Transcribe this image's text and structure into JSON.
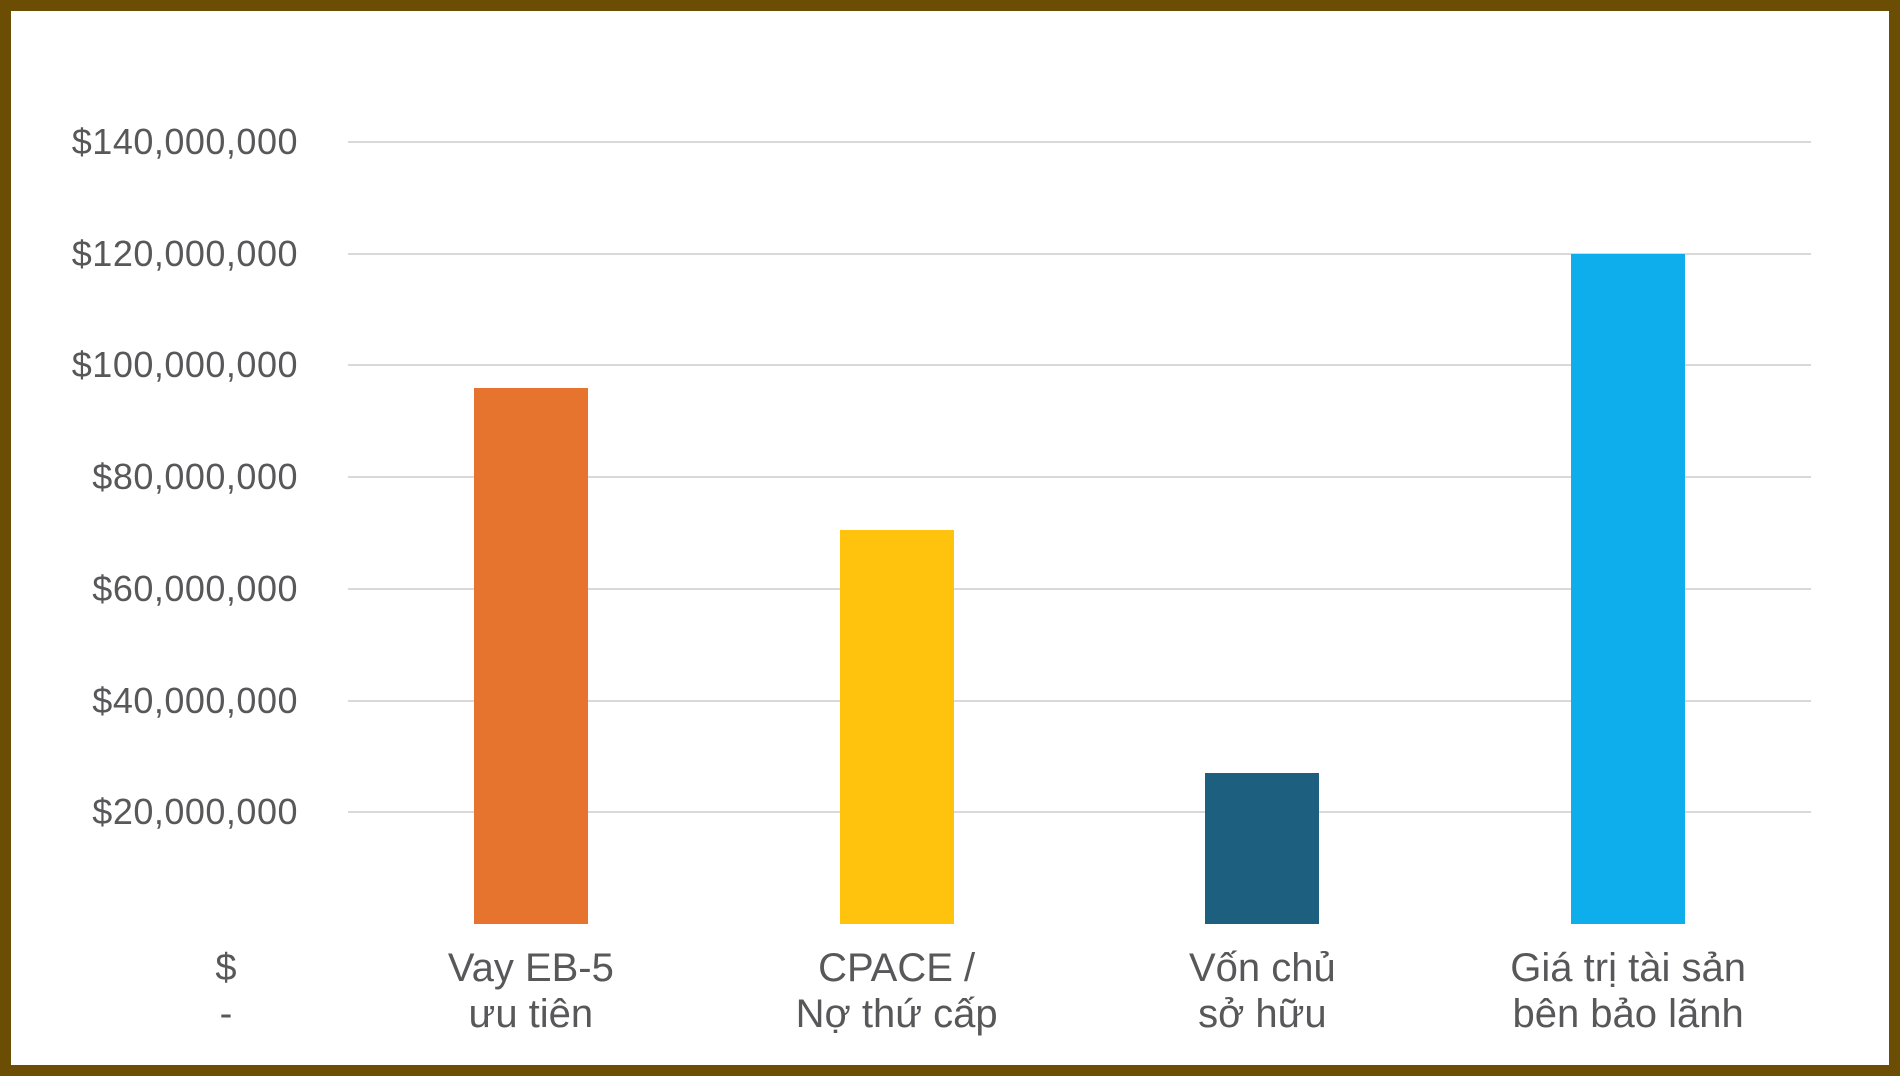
{
  "page": {
    "background_color": "#FFFFFF",
    "frame_border_color": "#6B4E04",
    "text_color": "#58585A",
    "gridline_color": "#D9D9D9"
  },
  "chart_data": {
    "type": "bar",
    "title": "",
    "xlabel": "",
    "ylabel": "",
    "grid": true,
    "legend": false,
    "categories": [
      "Vay EB-5 ưu tiên",
      "CPACE / Nợ thứ cấp",
      "Vốn chủ sở hữu",
      "Giá trị tài sản bên bảo lãnh"
    ],
    "categories_wrapped": [
      [
        "Vay EB-5",
        "ưu tiên"
      ],
      [
        "CPACE /",
        "Nợ thứ cấp"
      ],
      [
        "Vốn chủ",
        "sở hữu"
      ],
      [
        "Giá trị tài sản",
        "bên bảo lãnh"
      ]
    ],
    "values": [
      96000000,
      70500000,
      27000000,
      120000000
    ],
    "bar_colors": [
      "#E6732E",
      "#FFC20D",
      "#1D5F7E",
      "#0DAEEB"
    ],
    "ylim": [
      0,
      140000000
    ],
    "y_tick_step": 20000000,
    "y_ticks": [
      {
        "label": "$140,000,000",
        "value": 140000000
      },
      {
        "label": "$120,000,000",
        "value": 120000000
      },
      {
        "label": "$100,000,000",
        "value": 100000000
      },
      {
        "label": "$80,000,000",
        "value": 80000000
      },
      {
        "label": "$60,000,000",
        "value": 60000000
      },
      {
        "label": "$40,000,000",
        "value": 40000000
      },
      {
        "label": "$20,000,000",
        "value": 20000000
      }
    ],
    "zero_tick_lines": [
      "$",
      "-"
    ]
  }
}
